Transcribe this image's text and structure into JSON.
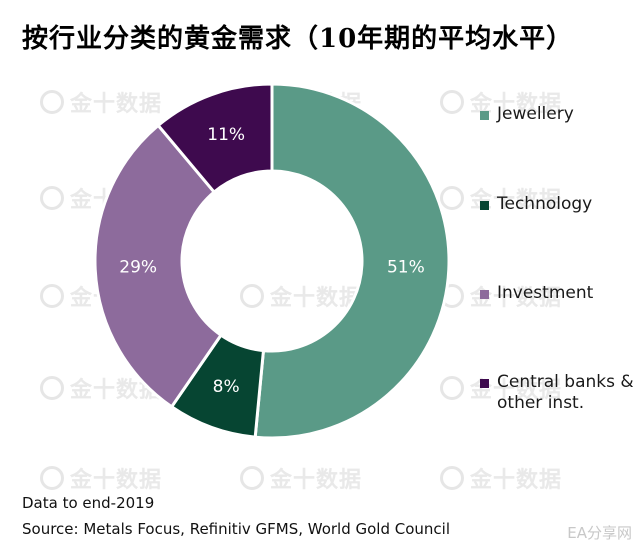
{
  "title": "按行业分类的黄金需求（10年期的平均水平）",
  "watermark_text": "金十数据",
  "chart_data": {
    "type": "pie",
    "categories": [
      "Jewellery",
      "Technology",
      "Investment",
      "Central banks & other inst."
    ],
    "values": [
      51,
      8,
      29,
      11
    ],
    "labels": [
      "51%",
      "8%",
      "29%",
      "11%"
    ],
    "colors": [
      "#5a9a87",
      "#064532",
      "#8d6b9c",
      "#3e0a4e"
    ],
    "legend_position": "right"
  },
  "legend": [
    {
      "label": "Jewellery",
      "color": "#5a9a87"
    },
    {
      "label": "Technology",
      "color": "#064532"
    },
    {
      "label": "Investment",
      "color": "#8d6b9c"
    },
    {
      "label": "Central banks & other inst.",
      "color": "#3e0a4e"
    }
  ],
  "footer": {
    "note": "Data to end-2019",
    "source": "Source: Metals Focus, Refinitiv GFMS, World Gold Council"
  },
  "bottom_watermark": "EA分享网"
}
